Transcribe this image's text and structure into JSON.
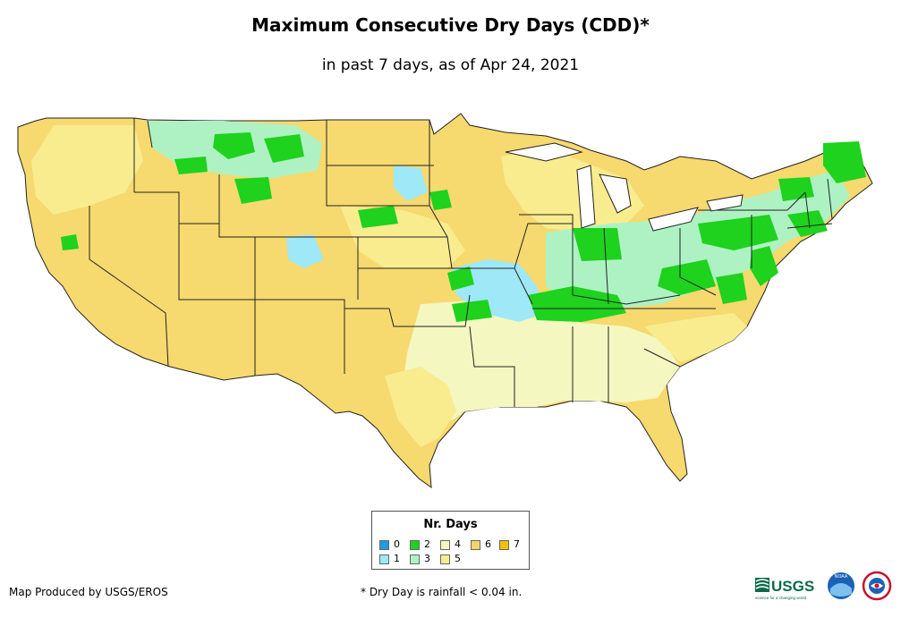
{
  "title": "Maximum Consecutive Dry Days (CDD)*",
  "subtitle": "in past 7 days, as of Apr 24, 2021",
  "legend": {
    "title": "Nr. Days",
    "items": [
      {
        "label": "0",
        "color": "#1f9ce8"
      },
      {
        "label": "1",
        "color": "#9ee8f7"
      },
      {
        "label": "2",
        "color": "#1ed21e"
      },
      {
        "label": "3",
        "color": "#aef2c4"
      },
      {
        "label": "4",
        "color": "#f5f7c0"
      },
      {
        "label": "5",
        "color": "#f9ec8f"
      },
      {
        "label": "6",
        "color": "#f5d56a"
      },
      {
        "label": "7",
        "color": "#f5c000"
      }
    ]
  },
  "credit": "Map Produced by USGS/EROS",
  "footnote": "* Dry Day is rainfall < 0.04 in.",
  "logos": {
    "usgs_text": "USGS",
    "usgs_tagline": "science for a changing world",
    "noaa_text": "NOAA"
  }
}
